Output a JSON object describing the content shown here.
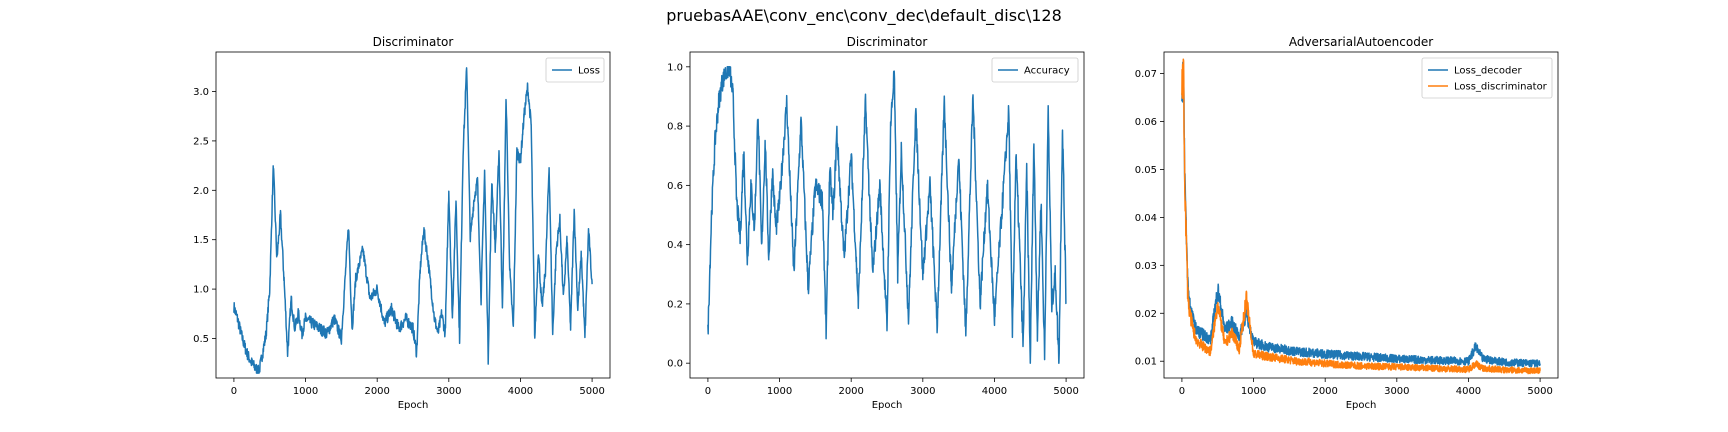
{
  "figure": {
    "suptitle": "pruebasAAE\\conv_enc\\conv_dec\\default_disc\\128"
  },
  "colors": {
    "blue": "#1f77b4",
    "orange": "#ff7f0e"
  },
  "chart_data": [
    {
      "type": "line",
      "title": "Discriminator",
      "xlabel": "Epoch",
      "ylabel": "",
      "xlim": [
        -250,
        5250
      ],
      "ylim": [
        0.1,
        3.4
      ],
      "xticks": [
        0,
        1000,
        2000,
        3000,
        4000,
        5000
      ],
      "yticks": [
        0.5,
        1.0,
        1.5,
        2.0,
        2.5,
        3.0
      ],
      "ytick_labels": [
        "0.5",
        "1.0",
        "1.5",
        "2.0",
        "2.5",
        "3.0"
      ],
      "legend_position": "top-right",
      "series": [
        {
          "name": "Loss",
          "color": "#1f77b4",
          "x": [
            0,
            50,
            100,
            150,
            200,
            250,
            300,
            350,
            400,
            450,
            500,
            550,
            600,
            650,
            700,
            750,
            800,
            850,
            900,
            950,
            1000,
            1100,
            1200,
            1300,
            1400,
            1500,
            1600,
            1620,
            1650,
            1700,
            1800,
            1900,
            2000,
            2100,
            2200,
            2300,
            2400,
            2500,
            2550,
            2600,
            2650,
            2700,
            2800,
            2850,
            2900,
            2950,
            3000,
            3050,
            3100,
            3150,
            3200,
            3250,
            3300,
            3350,
            3400,
            3450,
            3500,
            3550,
            3600,
            3650,
            3700,
            3750,
            3800,
            3850,
            3900,
            3950,
            4000,
            4050,
            4100,
            4150,
            4200,
            4250,
            4300,
            4350,
            4400,
            4450,
            4500,
            4550,
            4600,
            4650,
            4700,
            4750,
            4800,
            4850,
            4900,
            4950,
            5000
          ],
          "values": [
            0.82,
            0.7,
            0.55,
            0.42,
            0.32,
            0.25,
            0.2,
            0.16,
            0.35,
            0.55,
            1.0,
            2.25,
            1.3,
            1.75,
            1.1,
            0.35,
            0.9,
            0.6,
            0.75,
            0.55,
            0.7,
            0.65,
            0.6,
            0.55,
            0.7,
            0.5,
            1.65,
            1.2,
            0.6,
            1.1,
            1.4,
            0.9,
            1.0,
            0.65,
            0.8,
            0.6,
            0.7,
            0.6,
            0.35,
            1.2,
            1.6,
            1.35,
            0.7,
            0.55,
            0.75,
            0.55,
            2.0,
            0.7,
            1.9,
            0.5,
            2.4,
            3.25,
            1.5,
            1.9,
            2.1,
            0.9,
            2.2,
            0.3,
            2.1,
            1.4,
            2.4,
            0.8,
            2.95,
            1.2,
            0.6,
            2.4,
            2.3,
            2.75,
            3.05,
            2.65,
            0.5,
            1.4,
            0.8,
            1.2,
            2.25,
            0.55,
            1.4,
            1.7,
            0.9,
            1.5,
            0.6,
            1.8,
            0.8,
            1.35,
            0.5,
            1.6,
            1.05
          ]
        }
      ]
    },
    {
      "type": "line",
      "title": "Discriminator",
      "xlabel": "Epoch",
      "ylabel": "",
      "xlim": [
        -250,
        5250
      ],
      "ylim": [
        -0.05,
        1.05
      ],
      "xticks": [
        0,
        1000,
        2000,
        3000,
        4000,
        5000
      ],
      "yticks": [
        0.0,
        0.2,
        0.4,
        0.6,
        0.8,
        1.0
      ],
      "ytick_labels": [
        "0.0",
        "0.2",
        "0.4",
        "0.6",
        "0.8",
        "1.0"
      ],
      "legend_position": "top-right",
      "series": [
        {
          "name": "Accuracy",
          "color": "#1f77b4",
          "x": [
            0,
            50,
            100,
            150,
            200,
            250,
            300,
            350,
            400,
            450,
            500,
            550,
            600,
            650,
            700,
            750,
            800,
            850,
            900,
            950,
            1000,
            1100,
            1200,
            1300,
            1400,
            1500,
            1600,
            1650,
            1700,
            1750,
            1800,
            1900,
            2000,
            2100,
            2200,
            2300,
            2400,
            2500,
            2550,
            2600,
            2650,
            2700,
            2800,
            2900,
            3000,
            3100,
            3200,
            3300,
            3400,
            3500,
            3600,
            3700,
            3800,
            3900,
            4000,
            4100,
            4200,
            4250,
            4300,
            4350,
            4400,
            4450,
            4500,
            4550,
            4600,
            4650,
            4700,
            4750,
            4800,
            4850,
            4900,
            4950,
            5000
          ],
          "values": [
            0.1,
            0.5,
            0.75,
            0.88,
            0.95,
            0.98,
            1.0,
            0.9,
            0.55,
            0.42,
            0.72,
            0.35,
            0.6,
            0.45,
            0.85,
            0.38,
            0.75,
            0.35,
            0.65,
            0.45,
            0.55,
            0.88,
            0.3,
            0.82,
            0.25,
            0.6,
            0.55,
            0.1,
            0.65,
            0.5,
            0.78,
            0.35,
            0.7,
            0.2,
            0.88,
            0.3,
            0.6,
            0.12,
            0.8,
            0.98,
            0.3,
            0.72,
            0.15,
            0.85,
            0.3,
            0.6,
            0.12,
            0.88,
            0.25,
            0.7,
            0.1,
            0.9,
            0.2,
            0.6,
            0.15,
            0.5,
            0.85,
            0.1,
            0.7,
            0.4,
            0.05,
            0.65,
            0.0,
            0.75,
            0.1,
            0.55,
            0.02,
            0.85,
            0.2,
            0.3,
            0.0,
            0.8,
            0.2
          ]
        }
      ]
    },
    {
      "type": "line",
      "title": "AdversarialAutoencoder",
      "xlabel": "Epoch",
      "ylabel": "",
      "xlim": [
        -250,
        5250
      ],
      "ylim": [
        0.0065,
        0.0745
      ],
      "xticks": [
        0,
        1000,
        2000,
        3000,
        4000,
        5000
      ],
      "yticks": [
        0.01,
        0.02,
        0.03,
        0.04,
        0.05,
        0.06,
        0.07
      ],
      "ytick_labels": [
        "0.01",
        "0.02",
        "0.03",
        "0.04",
        "0.05",
        "0.06",
        "0.07"
      ],
      "legend_position": "top-right",
      "series": [
        {
          "name": "Loss_decoder",
          "color": "#1f77b4",
          "x": [
            0,
            20,
            40,
            60,
            80,
            100,
            150,
            200,
            300,
            400,
            500,
            600,
            700,
            800,
            900,
            1000,
            1200,
            1400,
            1600,
            1800,
            2000,
            2500,
            3000,
            3500,
            4000,
            4100,
            4200,
            4500,
            5000
          ],
          "values": [
            0.066,
            0.072,
            0.05,
            0.037,
            0.027,
            0.023,
            0.019,
            0.0165,
            0.0155,
            0.0145,
            0.025,
            0.0165,
            0.018,
            0.015,
            0.02,
            0.014,
            0.013,
            0.0125,
            0.012,
            0.0118,
            0.0115,
            0.011,
            0.0105,
            0.0102,
            0.01,
            0.013,
            0.0105,
            0.0098,
            0.0095
          ]
        },
        {
          "name": "Loss_discriminator",
          "color": "#ff7f0e",
          "x": [
            0,
            20,
            40,
            60,
            80,
            100,
            150,
            200,
            300,
            400,
            500,
            600,
            700,
            800,
            900,
            1000,
            1200,
            1400,
            1600,
            1800,
            2000,
            2500,
            3000,
            3500,
            4000,
            4100,
            4200,
            4500,
            5000
          ],
          "values": [
            0.065,
            0.071,
            0.048,
            0.036,
            0.025,
            0.021,
            0.017,
            0.0145,
            0.013,
            0.012,
            0.022,
            0.0135,
            0.016,
            0.0125,
            0.023,
            0.0115,
            0.011,
            0.0105,
            0.01,
            0.0098,
            0.0095,
            0.009,
            0.0088,
            0.0085,
            0.0083,
            0.0095,
            0.0085,
            0.0082,
            0.008
          ]
        }
      ]
    }
  ]
}
